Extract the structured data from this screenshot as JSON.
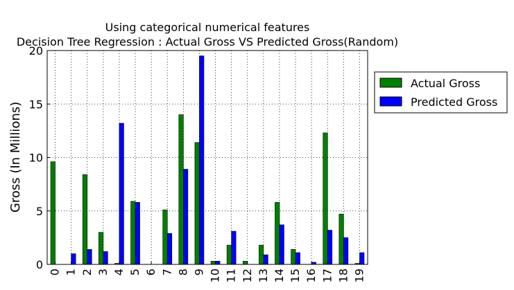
{
  "chart_data": {
    "type": "bar",
    "title": "Using categorical numerical features",
    "subtitle": "Decision Tree Regression : Actual Gross VS Predicted Gross(Random)",
    "xlabel": "",
    "ylabel": "Gross (In Millions)",
    "categories": [
      "0",
      "1",
      "2",
      "3",
      "4",
      "5",
      "6",
      "7",
      "8",
      "9",
      "10",
      "11",
      "12",
      "13",
      "14",
      "15",
      "16",
      "17",
      "18",
      "19"
    ],
    "series": [
      {
        "name": "Actual Gross",
        "color": "#008000",
        "values": [
          9.6,
          0.0,
          8.4,
          3.0,
          0.1,
          5.9,
          0.0,
          5.1,
          14.0,
          11.4,
          0.3,
          1.8,
          0.3,
          1.8,
          5.8,
          1.4,
          0.0,
          12.3,
          4.7,
          0.1
        ]
      },
      {
        "name": "Predicted Gross",
        "color": "#0000ff",
        "values": [
          0.0,
          1.0,
          1.4,
          1.2,
          13.2,
          5.8,
          0.0,
          2.9,
          8.9,
          19.5,
          0.3,
          3.1,
          0.0,
          0.9,
          3.7,
          1.1,
          0.2,
          3.2,
          2.5,
          1.1
        ]
      }
    ],
    "ylim": [
      0,
      20
    ],
    "yticks": [
      "0",
      "5",
      "10",
      "15",
      "20"
    ],
    "grid": true,
    "legend_position": "outside-right"
  }
}
